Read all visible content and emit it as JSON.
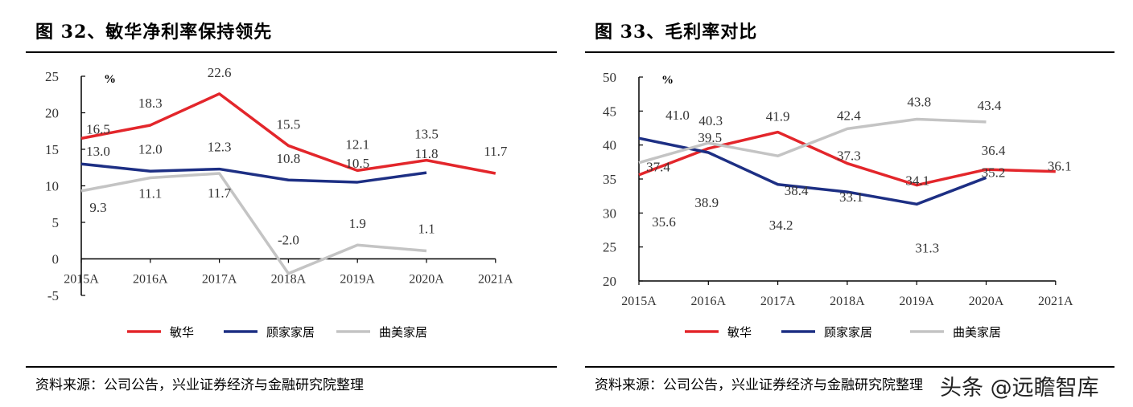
{
  "chart_data": [
    {
      "type": "line",
      "title": "图 32、敏华净利率保持领先",
      "unit_label": "%",
      "categories": [
        "2015A",
        "2016A",
        "2017A",
        "2018A",
        "2019A",
        "2020A",
        "2021A"
      ],
      "ylim": [
        -5,
        25
      ],
      "yticks": [
        "-5",
        "0",
        "5",
        "10",
        "15",
        "20",
        "25"
      ],
      "legend_position": "bottom",
      "grid": false,
      "series": [
        {
          "name": "敏华",
          "color": "#e3262b",
          "values": [
            16.5,
            18.3,
            22.6,
            15.5,
            12.1,
            13.5,
            11.7
          ]
        },
        {
          "name": "顾家家居",
          "color": "#1d2f84",
          "values": [
            13.0,
            12.0,
            12.3,
            10.8,
            10.5,
            11.8,
            null
          ]
        },
        {
          "name": "曲美家居",
          "color": "#c4c4c4",
          "values": [
            9.3,
            11.1,
            11.7,
            -2.0,
            1.9,
            1.1,
            null
          ]
        }
      ],
      "source": "资料来源：公司公告，兴业证券经济与金融研究院整理"
    },
    {
      "type": "line",
      "title": "图 33、毛利率对比",
      "unit_label": "%",
      "categories": [
        "2015A",
        "2016A",
        "2017A",
        "2018A",
        "2019A",
        "2020A",
        "2021A"
      ],
      "ylim": [
        20,
        50
      ],
      "yticks": [
        "20",
        "25",
        "30",
        "35",
        "40",
        "45",
        "50"
      ],
      "legend_position": "bottom",
      "grid": false,
      "series": [
        {
          "name": "敏华",
          "color": "#e3262b",
          "values": [
            35.6,
            39.5,
            41.9,
            37.3,
            34.1,
            36.4,
            36.1
          ]
        },
        {
          "name": "顾家家居",
          "color": "#1d2f84",
          "values": [
            41.0,
            38.9,
            34.2,
            33.1,
            31.3,
            35.2,
            null
          ]
        },
        {
          "name": "曲美家居",
          "color": "#c4c4c4",
          "values": [
            37.4,
            40.3,
            38.4,
            42.4,
            43.8,
            43.4,
            null
          ]
        }
      ],
      "source": "资料来源：公司公告，兴业证券经济与金融研究院整理"
    }
  ],
  "watermark": "头条 @远瞻智库"
}
